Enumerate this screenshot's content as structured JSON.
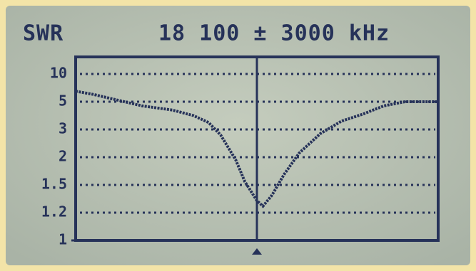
{
  "chart_data": {
    "type": "line",
    "title": "SWR",
    "subtitle": "18 100 ± 3000 kHz",
    "x": [
      15100,
      15400,
      15750,
      16200,
      16700,
      17050,
      17300,
      17500,
      17750,
      17900,
      18100,
      18200,
      18350,
      18550,
      18800,
      19150,
      19500,
      19850,
      20200,
      20550,
      21100
    ],
    "series": [
      {
        "name": "SWR",
        "color": "#263259",
        "values": [
          6.9,
          6.3,
          5.4,
          4.7,
          4.4,
          4.0,
          3.5,
          2.8,
          1.95,
          1.56,
          1.33,
          1.27,
          1.39,
          1.69,
          2.15,
          2.85,
          3.6,
          4.1,
          4.7,
          5.0,
          5.0
        ]
      }
    ],
    "xlim": [
      15100,
      21100
    ],
    "ylim": [
      1,
      10
    ],
    "yticks": [
      1,
      1.2,
      1.5,
      2,
      3,
      5,
      10
    ],
    "marker_x": 18100,
    "grid": true
  }
}
